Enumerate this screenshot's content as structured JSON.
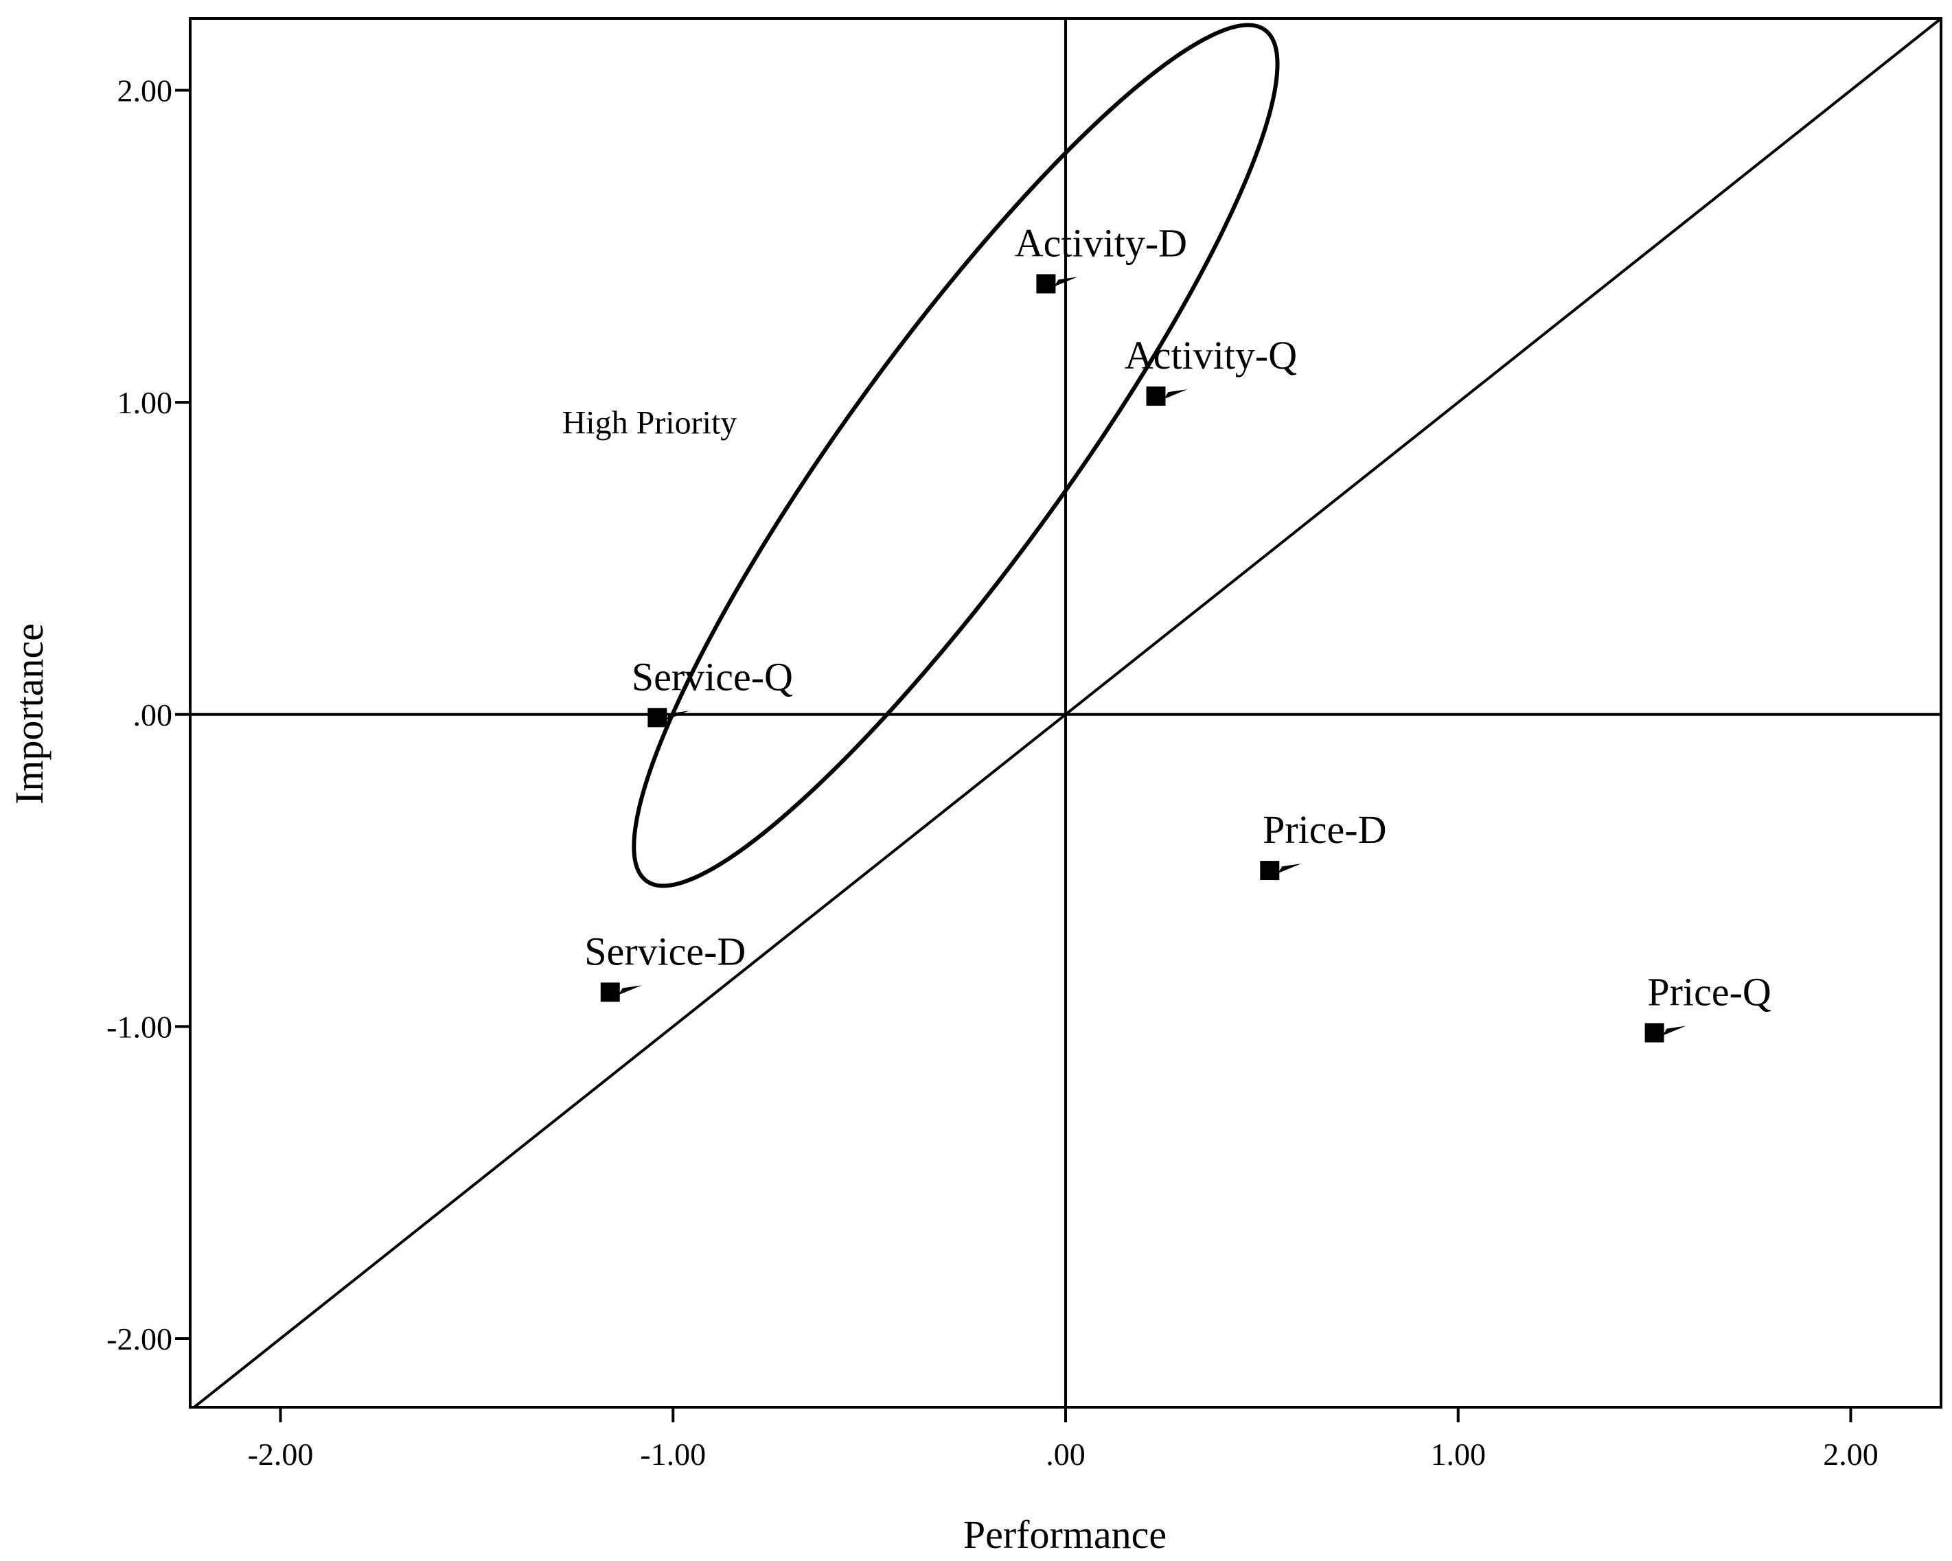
{
  "chart_data": {
    "type": "scatter",
    "xlabel": "Performance",
    "ylabel": "Importance",
    "xlim": [
      -2.23,
      2.23
    ],
    "ylim": [
      -2.22,
      2.23
    ],
    "x_ticks": [
      {
        "value": -2,
        "label": "-2.00"
      },
      {
        "value": -1,
        "label": "-1.00"
      },
      {
        "value": 0,
        "label": ".00"
      },
      {
        "value": 1,
        "label": "1.00"
      },
      {
        "value": 2,
        "label": "2.00"
      }
    ],
    "y_ticks": [
      {
        "value": 2,
        "label": "2.00"
      },
      {
        "value": 1,
        "label": "1.00"
      },
      {
        "value": 0,
        "label": ".00"
      },
      {
        "value": -1,
        "label": "-1.00"
      },
      {
        "value": -2,
        "label": "-2.00"
      }
    ],
    "points": [
      {
        "label": "Activity-D",
        "x": -0.05,
        "y": 1.38
      },
      {
        "label": "Activity-Q",
        "x": 0.23,
        "y": 1.02
      },
      {
        "label": "Service-Q",
        "x": -1.04,
        "y": -0.01
      },
      {
        "label": "Price-D",
        "x": 0.52,
        "y": -0.5
      },
      {
        "label": "Service-D",
        "x": -1.16,
        "y": -0.89
      },
      {
        "label": "Price-Q",
        "x": 1.5,
        "y": -1.02
      }
    ],
    "reference_lines": [
      "x = 0",
      "y = 0",
      "y = x"
    ],
    "annotations": [
      {
        "text": "High Priority",
        "x": -1.06,
        "y": 0.9
      }
    ],
    "highlight_region": {
      "type": "ellipse",
      "center": [
        -0.28,
        0.83
      ],
      "semi_axes": [
        1.34,
        0.28
      ],
      "rotation_deg": 54
    }
  }
}
